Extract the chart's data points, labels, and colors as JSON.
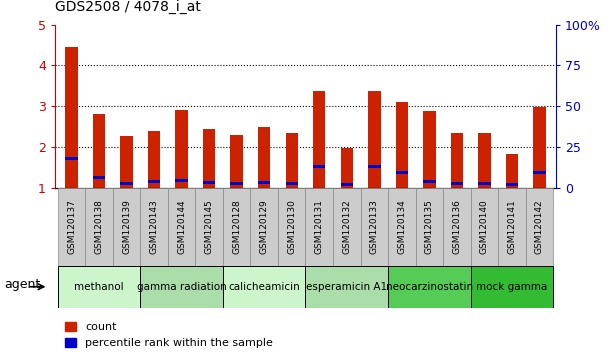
{
  "title": "GDS2508 / 4078_i_at",
  "samples": [
    "GSM120137",
    "GSM120138",
    "GSM120139",
    "GSM120143",
    "GSM120144",
    "GSM120145",
    "GSM120128",
    "GSM120129",
    "GSM120130",
    "GSM120131",
    "GSM120132",
    "GSM120133",
    "GSM120134",
    "GSM120135",
    "GSM120136",
    "GSM120140",
    "GSM120141",
    "GSM120142"
  ],
  "count_values": [
    4.45,
    2.8,
    2.27,
    2.4,
    2.9,
    2.45,
    2.3,
    2.5,
    2.35,
    3.38,
    1.97,
    3.37,
    3.1,
    2.87,
    2.35,
    2.35,
    1.82,
    2.97
  ],
  "percentile_values": [
    1.72,
    1.25,
    1.1,
    1.15,
    1.17,
    1.12,
    1.1,
    1.12,
    1.1,
    1.52,
    1.08,
    1.52,
    1.37,
    1.15,
    1.1,
    1.1,
    1.08,
    1.38
  ],
  "bar_color": "#cc2200",
  "percentile_color": "#0000cc",
  "ylim": [
    1,
    5
  ],
  "y2lim": [
    0,
    100
  ],
  "yticks": [
    1,
    2,
    3,
    4,
    5
  ],
  "ytick_labels": [
    "1",
    "2",
    "3",
    "4",
    "5"
  ],
  "y2ticks": [
    0,
    25,
    50,
    75,
    100
  ],
  "y2tick_labels": [
    "0",
    "25",
    "50",
    "75",
    "100%"
  ],
  "dotted_lines": [
    2,
    3,
    4
  ],
  "agent_groups": [
    {
      "label": "methanol",
      "start": 0,
      "end": 3,
      "color": "#ccf5cc"
    },
    {
      "label": "gamma radiation",
      "start": 3,
      "end": 6,
      "color": "#aaddaa"
    },
    {
      "label": "calicheamicin",
      "start": 6,
      "end": 9,
      "color": "#ccf5cc"
    },
    {
      "label": "esperamicin A1",
      "start": 9,
      "end": 12,
      "color": "#aaddaa"
    },
    {
      "label": "neocarzinostatin",
      "start": 12,
      "end": 15,
      "color": "#55cc55"
    },
    {
      "label": "mock gamma",
      "start": 15,
      "end": 18,
      "color": "#33bb33"
    }
  ],
  "agent_label": "agent",
  "legend_count_label": "count",
  "legend_percentile_label": "percentile rank within the sample",
  "bar_width": 0.45,
  "title_color": "#000000",
  "left_axis_color": "#cc0000",
  "right_axis_color": "#0000cc",
  "xlabel_fontsize": 6.5,
  "title_fontsize": 10,
  "tick_cell_color": "#cccccc",
  "tick_cell_border": "#888888"
}
